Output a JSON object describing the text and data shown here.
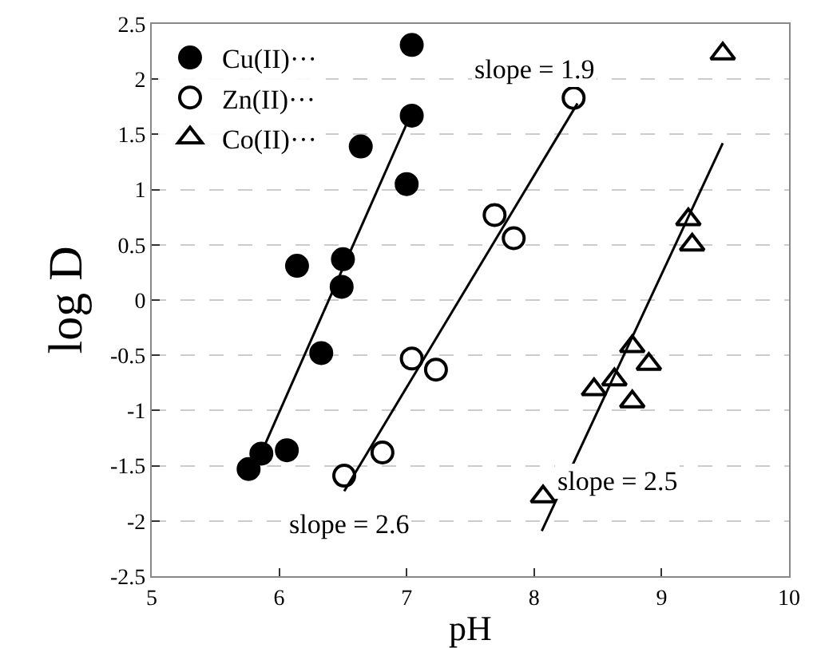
{
  "chart_data": {
    "type": "scatter",
    "xlabel": "pH",
    "ylabel": "log D",
    "xlim": [
      5,
      10
    ],
    "xticks": [
      5,
      6,
      7,
      8,
      9,
      10
    ],
    "ylim": [
      -2.5,
      2.5
    ],
    "yticks": [
      -2.5,
      -2,
      -1.5,
      -1,
      -0.5,
      0,
      0.5,
      1,
      1.5,
      2,
      2.5
    ],
    "grid": "y",
    "legend": "top left",
    "series": [
      {
        "name": "Cu(II)···",
        "color": "#000000",
        "marker": "circle",
        "x": [
          7.04,
          7.04,
          6.64,
          7.0,
          6.14,
          6.5,
          6.49,
          6.33,
          6.06,
          5.86,
          5.76
        ],
        "values": [
          2.31,
          1.67,
          1.39,
          1.05,
          0.31,
          0.37,
          0.12,
          -0.48,
          -1.36,
          -1.39,
          -1.53
        ]
      },
      {
        "name": "Zn(II)···",
        "color": "#ffffff",
        "marker": "circle",
        "x": [
          6.51,
          6.81,
          7.04,
          7.23,
          8.31,
          7.69,
          7.84
        ],
        "values": [
          -1.59,
          -1.38,
          -0.53,
          -0.63,
          1.83,
          0.77,
          0.56
        ]
      },
      {
        "name": "Co(II)···",
        "color": "#ffffff",
        "marker": "triangle",
        "x": [
          9.21,
          9.24,
          8.77,
          8.9,
          8.63,
          8.77,
          8.47,
          8.07,
          9.48
        ],
        "values": [
          0.73,
          0.5,
          -0.42,
          -0.58,
          -0.72,
          -0.92,
          -0.81,
          -1.78,
          2.23
        ]
      },
      {
        "type": "line",
        "color": "#000000",
        "x": [
          5.88,
          7.04
        ],
        "values": [
          -1.33,
          1.7
        ]
      },
      {
        "type": "line",
        "color": "#000000",
        "x": [
          6.51,
          8.34
        ],
        "values": [
          -1.73,
          1.78
        ]
      },
      {
        "type": "line",
        "color": "#000000",
        "x": [
          8.06,
          9.48
        ],
        "values": [
          -2.09,
          1.42
        ]
      }
    ],
    "annotations": [
      "slope = 2.6",
      "slope = 1.9",
      "slope = 2.5"
    ]
  }
}
